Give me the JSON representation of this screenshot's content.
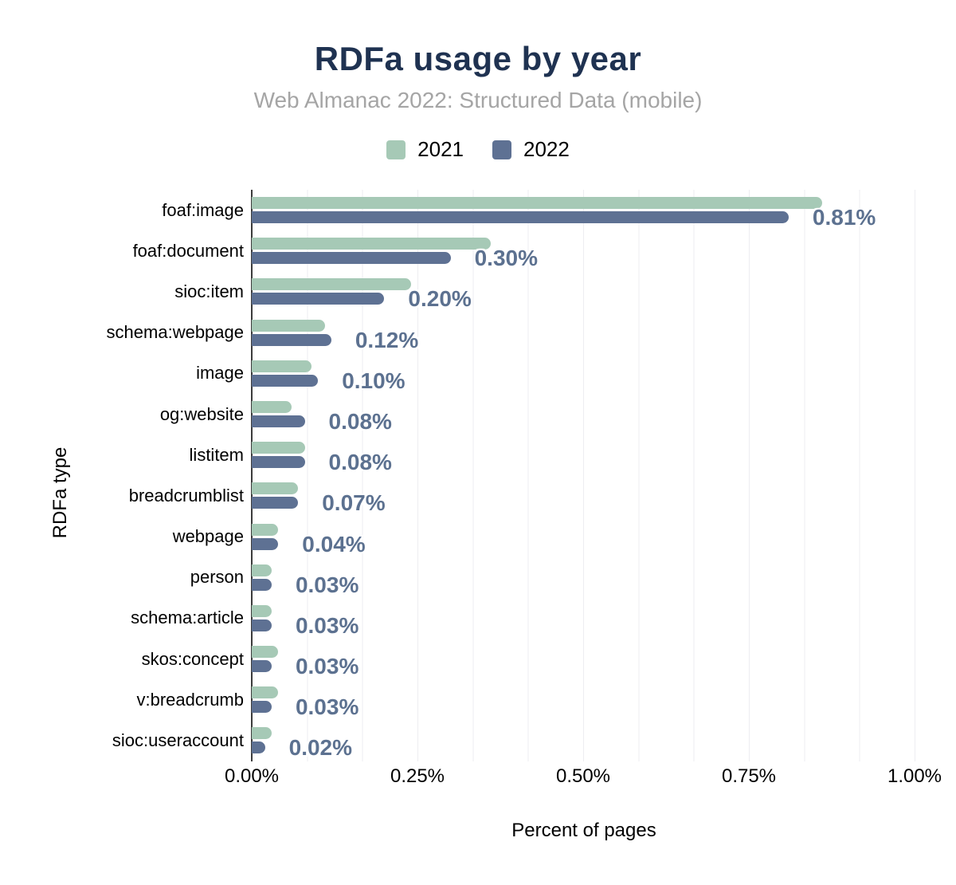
{
  "title": "RDFa usage by year",
  "subtitle": "Web Almanac 2022: Structured Data (mobile)",
  "legend": {
    "items": [
      {
        "label": "2021",
        "color": "#a6c9b6"
      },
      {
        "label": "2022",
        "color": "#5e7193"
      }
    ]
  },
  "axes": {
    "x_label": "Percent of pages",
    "y_label": "RDFa type",
    "x_ticks": [
      "0.00%",
      "0.25%",
      "0.50%",
      "0.75%",
      "1.00%"
    ]
  },
  "colors": {
    "series_2021": "#a6c9b6",
    "series_2022": "#5e7193",
    "title": "#1f3251",
    "subtitle": "#a5a5a5",
    "value_label": "#5c7190",
    "gridline": "#ededf1",
    "axis_line": "#3c3c3c"
  },
  "chart_data": {
    "type": "bar",
    "orientation": "horizontal",
    "title": "RDFa usage by year",
    "subtitle": "Web Almanac 2022: Structured Data (mobile)",
    "xlabel": "Percent of pages",
    "ylabel": "RDFa type",
    "xlim": [
      0,
      1.0
    ],
    "x_tick_labels": [
      "0.00%",
      "0.25%",
      "0.50%",
      "0.75%",
      "1.00%"
    ],
    "grid": true,
    "legend_position": "top",
    "categories": [
      "foaf:image",
      "foaf:document",
      "sioc:item",
      "schema:webpage",
      "image",
      "og:website",
      "listitem",
      "breadcrumblist",
      "webpage",
      "person",
      "schema:article",
      "skos:concept",
      "v:breadcrumb",
      "sioc:useraccount"
    ],
    "series": [
      {
        "name": "2021",
        "values": [
          0.86,
          0.36,
          0.24,
          0.11,
          0.09,
          0.06,
          0.08,
          0.07,
          0.04,
          0.03,
          0.03,
          0.04,
          0.04,
          0.03
        ]
      },
      {
        "name": "2022",
        "values": [
          0.81,
          0.3,
          0.2,
          0.12,
          0.1,
          0.08,
          0.08,
          0.07,
          0.04,
          0.03,
          0.03,
          0.03,
          0.03,
          0.02
        ]
      }
    ],
    "bar_labels": [
      "0.81%",
      "0.30%",
      "0.20%",
      "0.12%",
      "0.10%",
      "0.08%",
      "0.08%",
      "0.07%",
      "0.04%",
      "0.03%",
      "0.03%",
      "0.03%",
      "0.03%",
      "0.02%"
    ],
    "bar_labels_series": "2022"
  }
}
